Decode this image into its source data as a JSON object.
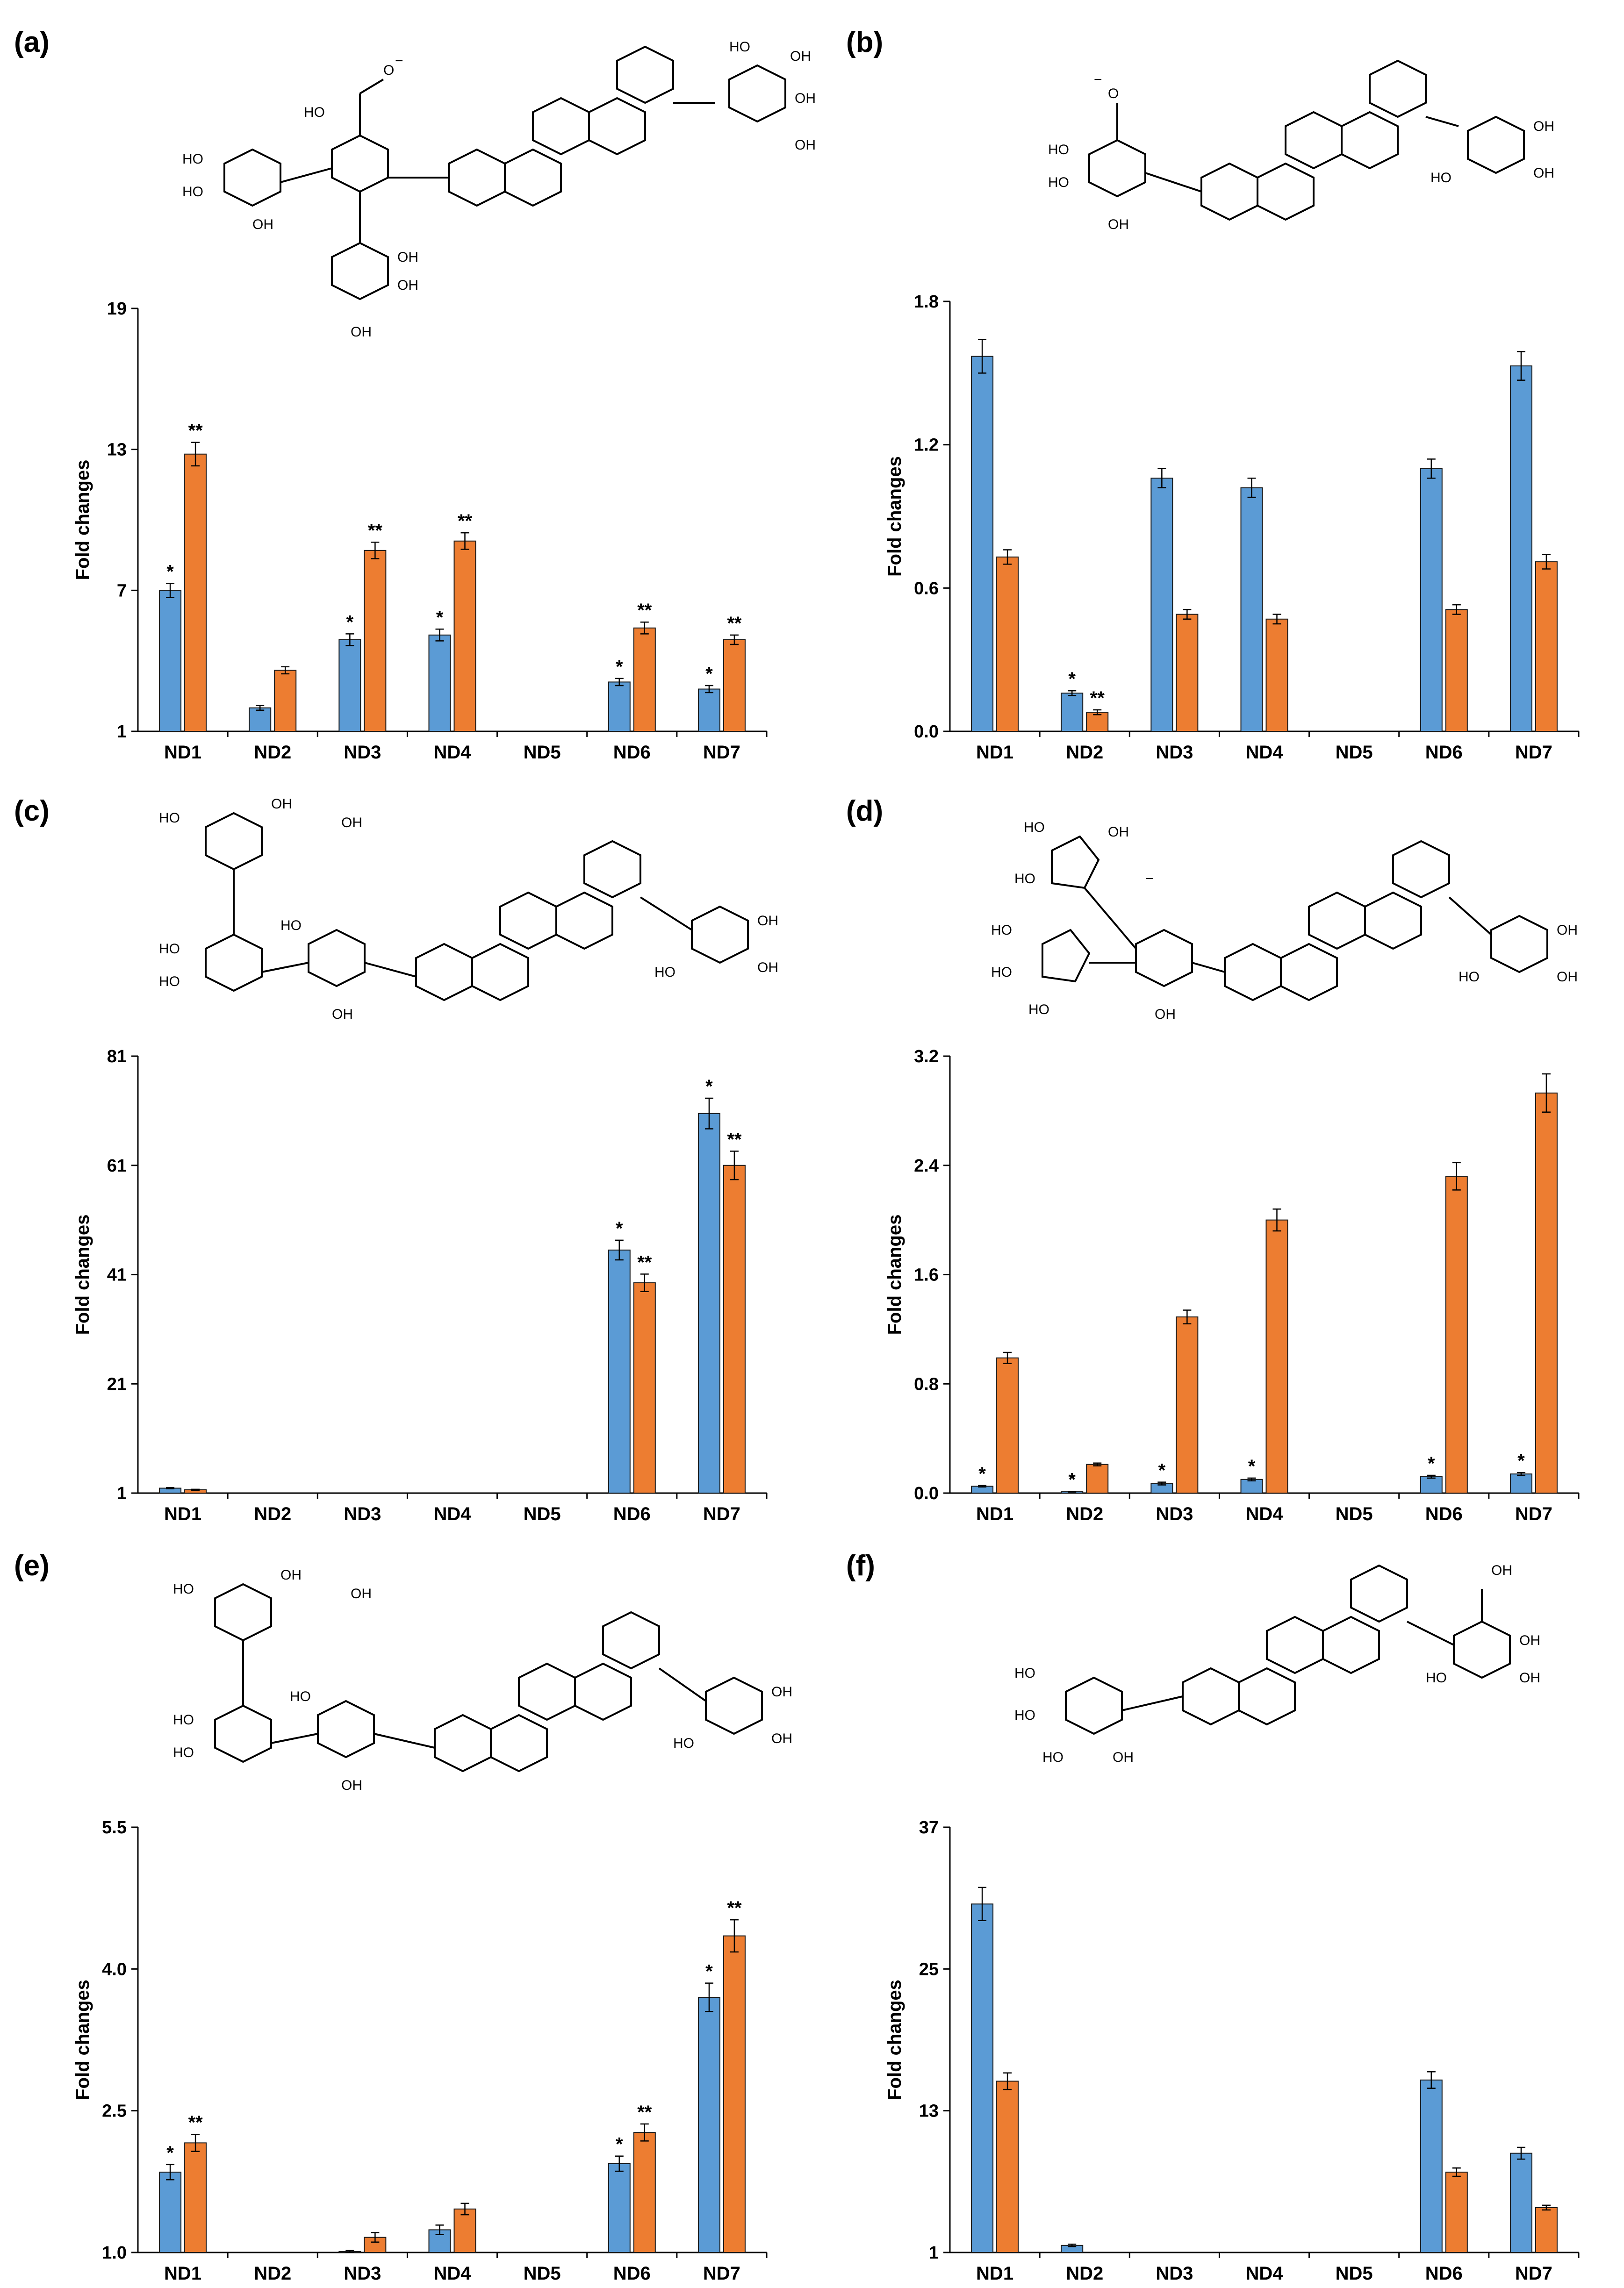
{
  "colors": {
    "series1": "#5B9BD5",
    "series2": "#ED7D31",
    "axis": "#000000"
  },
  "chart_data": [
    {
      "panel": "(a)",
      "type": "bar",
      "ylabel": "Fold changes",
      "categories": [
        "ND1",
        "ND2",
        "ND3",
        "ND4",
        "ND5",
        "ND6",
        "ND7"
      ],
      "ylim": [
        1,
        19
      ],
      "yticks": [
        "1",
        "7",
        "13",
        "19"
      ],
      "series": [
        {
          "name": "series 1",
          "values": [
            7.0,
            2.0,
            4.9,
            5.1,
            null,
            3.1,
            2.8
          ],
          "errors": [
            0.3,
            0.1,
            0.25,
            0.25,
            null,
            0.15,
            0.15
          ],
          "sig": [
            "*",
            "",
            "*",
            "*",
            "",
            "*",
            "*"
          ]
        },
        {
          "name": "series 2",
          "values": [
            12.8,
            3.6,
            8.7,
            9.1,
            null,
            5.4,
            4.9
          ],
          "errors": [
            0.5,
            0.15,
            0.35,
            0.35,
            null,
            0.25,
            0.2
          ],
          "sig": [
            "**",
            "",
            "**",
            "**",
            "",
            "**",
            "**"
          ]
        }
      ]
    },
    {
      "panel": "(b)",
      "type": "bar",
      "ylabel": "Fold changes",
      "categories": [
        "ND1",
        "ND2",
        "ND3",
        "ND4",
        "ND5",
        "ND6",
        "ND7"
      ],
      "ylim": [
        0,
        1.8
      ],
      "yticks": [
        "0.0",
        "0.6",
        "1.2",
        "1.8"
      ],
      "series": [
        {
          "name": "series 1",
          "values": [
            1.57,
            0.16,
            1.06,
            1.02,
            null,
            1.1,
            1.53
          ],
          "errors": [
            0.07,
            0.01,
            0.04,
            0.04,
            null,
            0.04,
            0.06
          ],
          "sig": [
            "",
            "*",
            "",
            "",
            "",
            "",
            ""
          ]
        },
        {
          "name": "series 2",
          "values": [
            0.73,
            0.08,
            0.49,
            0.47,
            null,
            0.51,
            0.71
          ],
          "errors": [
            0.03,
            0.01,
            0.02,
            0.02,
            null,
            0.02,
            0.03
          ],
          "sig": [
            "",
            "**",
            "",
            "",
            "",
            "",
            ""
          ]
        }
      ]
    },
    {
      "panel": "(c)",
      "type": "bar",
      "ylabel": "Fold changes",
      "categories": [
        "ND1",
        "ND2",
        "ND3",
        "ND4",
        "ND5",
        "ND6",
        "ND7"
      ],
      "ylim": [
        1,
        81
      ],
      "yticks": [
        "1",
        "21",
        "41",
        "61",
        "81"
      ],
      "series": [
        {
          "name": "series 1",
          "values": [
            1.9,
            null,
            null,
            null,
            null,
            45.5,
            70.5
          ],
          "errors": [
            0.1,
            null,
            null,
            null,
            null,
            1.8,
            2.8
          ],
          "sig": [
            "",
            "",
            "",
            "",
            "",
            "*",
            "*"
          ]
        },
        {
          "name": "series 2",
          "values": [
            1.6,
            null,
            null,
            null,
            null,
            39.5,
            61.0
          ],
          "errors": [
            0.1,
            null,
            null,
            null,
            null,
            1.6,
            2.6
          ],
          "sig": [
            "",
            "",
            "",
            "",
            "",
            "**",
            "**"
          ]
        }
      ]
    },
    {
      "panel": "(d)",
      "type": "bar",
      "ylabel": "Fold changes",
      "categories": [
        "ND1",
        "ND2",
        "ND3",
        "ND4",
        "ND5",
        "ND6",
        "ND7"
      ],
      "ylim": [
        0,
        3.2
      ],
      "yticks": [
        "0.0",
        "0.8",
        "1.6",
        "2.4",
        "3.2"
      ],
      "series": [
        {
          "name": "series 1",
          "values": [
            0.05,
            0.01,
            0.07,
            0.1,
            null,
            0.12,
            0.14
          ],
          "errors": [
            0.005,
            0.002,
            0.01,
            0.01,
            null,
            0.01,
            0.01
          ],
          "sig": [
            "*",
            "*",
            "*",
            "*",
            "",
            "*",
            "*"
          ]
        },
        {
          "name": "series 2",
          "values": [
            0.99,
            0.21,
            1.29,
            2.0,
            null,
            2.32,
            2.93
          ],
          "errors": [
            0.04,
            0.01,
            0.05,
            0.08,
            null,
            0.1,
            0.14
          ],
          "sig": [
            "",
            "",
            "",
            "",
            "",
            "",
            ""
          ]
        }
      ]
    },
    {
      "panel": "(e)",
      "type": "bar",
      "ylabel": "Fold changes",
      "categories": [
        "ND1",
        "ND2",
        "ND3",
        "ND4",
        "ND5",
        "ND6",
        "ND7"
      ],
      "ylim": [
        1.0,
        5.5
      ],
      "yticks": [
        "1.0",
        "2.5",
        "4.0",
        "5.5"
      ],
      "series": [
        {
          "name": "series 1",
          "values": [
            1.85,
            null,
            1.01,
            1.24,
            null,
            1.94,
            3.7
          ],
          "errors": [
            0.08,
            null,
            0.01,
            0.05,
            null,
            0.08,
            0.15
          ],
          "sig": [
            "*",
            "",
            "",
            "",
            "",
            "*",
            "*"
          ]
        },
        {
          "name": "series 2",
          "values": [
            2.16,
            null,
            1.16,
            1.46,
            null,
            2.27,
            4.35
          ],
          "errors": [
            0.09,
            null,
            0.05,
            0.06,
            null,
            0.09,
            0.17
          ],
          "sig": [
            "**",
            "",
            "",
            "",
            "",
            "**",
            "**"
          ]
        }
      ]
    },
    {
      "panel": "(f)",
      "type": "bar",
      "ylabel": "Fold changes",
      "categories": [
        "ND1",
        "ND2",
        "ND3",
        "ND4",
        "ND5",
        "ND6",
        "ND7"
      ],
      "ylim": [
        1,
        37
      ],
      "yticks": [
        "1",
        "13",
        "25",
        "37"
      ],
      "series": [
        {
          "name": "series 1",
          "values": [
            30.5,
            1.6,
            null,
            null,
            null,
            15.6,
            9.4
          ],
          "errors": [
            1.4,
            0.1,
            null,
            null,
            null,
            0.7,
            0.5
          ],
          "sig": [
            "",
            "",
            "",
            "",
            "",
            "",
            ""
          ]
        },
        {
          "name": "series 2",
          "values": [
            15.5,
            null,
            null,
            null,
            null,
            7.8,
            4.8
          ],
          "errors": [
            0.7,
            null,
            null,
            null,
            null,
            0.35,
            0.2
          ],
          "sig": [
            "",
            "",
            "",
            "",
            "",
            "",
            ""
          ]
        }
      ]
    }
  ],
  "structure_labels": {
    "hydroxyl": "OH",
    "hydroxyl_left": "HO",
    "carboxylate": "O",
    "carboxylic_acid": "OH",
    "charge": "−"
  }
}
